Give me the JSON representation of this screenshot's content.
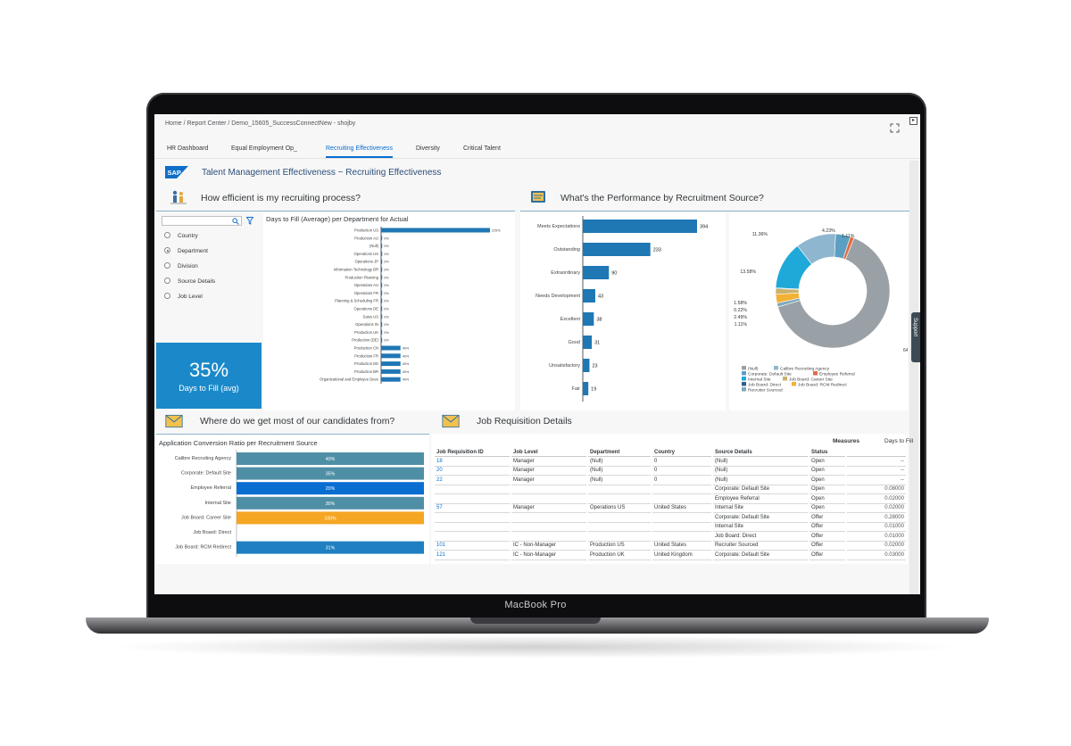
{
  "breadcrumb": "Home / Report Center / Demo_15605_SuccessConnectNew - shojby",
  "tabs": [
    {
      "label": "HR Dashboard"
    },
    {
      "label": "Equal Employment Op_"
    },
    {
      "label": "Recruiting Effectiveness",
      "active": true
    },
    {
      "label": "Diversity"
    },
    {
      "label": "Critical Talent"
    }
  ],
  "page_title": "Talent Management Effectiveness ~ Recruiting Effectiveness",
  "sections": {
    "efficiency": "How efficient is my recruiting process?",
    "performance": "What's the Performance by Recruitment Source?",
    "candidates": "Where do we get most of our candidates from?",
    "requisitions": "Job Requisition Details"
  },
  "filters": {
    "search_placeholder": "",
    "options": [
      {
        "label": "Country",
        "selected": false
      },
      {
        "label": "Department",
        "selected": true
      },
      {
        "label": "Division",
        "selected": false
      },
      {
        "label": "Source Details",
        "selected": false
      },
      {
        "label": "Job Level",
        "selected": false
      }
    ]
  },
  "kpi": {
    "value": "35%",
    "label": "Days to Fill (avg)"
  },
  "support_label": "Support",
  "colors": {
    "accent": "#0a6ed1",
    "bar_blue": "#1f77b4",
    "kpi_tile": "#1b89c9"
  },
  "chart_data": [
    {
      "type": "bar",
      "orientation": "horizontal",
      "title": "Days to Fill (Average) per Department for Actual",
      "categories": [
        "Production US",
        "Production AU",
        "(Null)",
        "Operations US",
        "Operations JP",
        "Information Technology BR",
        "Production Planning",
        "Operations AU",
        "Operations FR",
        "Planning & Scheduling FR",
        "Operations DE",
        "Sales US",
        "Operations IN",
        "Production UK",
        "Production (DE)",
        "Production CN",
        "Production FR",
        "Production DE",
        "Production BR",
        "Organizational and Employee Deve"
      ],
      "value_labels": [
        "225%",
        "0%",
        "0%",
        "0%",
        "0%",
        "0%",
        "0%",
        "0%",
        "0%",
        "0%",
        "0%",
        "0%",
        "0%",
        "0%",
        "0%",
        "40%",
        "40%",
        "40%",
        "40%",
        "40%"
      ],
      "values": [
        225,
        0,
        0,
        0,
        0,
        0,
        0,
        0,
        0,
        0,
        0,
        0,
        0,
        0,
        0,
        40,
        40,
        40,
        40,
        40
      ]
    },
    {
      "type": "bar",
      "orientation": "horizontal",
      "title": "",
      "categories": [
        "Meets Expectations",
        "Outstanding",
        "Extraordinary",
        "Needs Development",
        "Excellent",
        "Good",
        "Unsatisfactory",
        "Fair"
      ],
      "values": [
        394,
        233,
        90,
        43,
        38,
        31,
        23,
        19
      ]
    },
    {
      "type": "pie",
      "variant": "donut",
      "slices": [
        {
          "name": "(Null)",
          "value": 64.37,
          "label": "64.37%",
          "color": "#9aa1a6"
        },
        {
          "name": "Calibre Recruiting Agency",
          "value": 11.36,
          "label": "11.36%",
          "color": "#8fb6cf"
        },
        {
          "name": "Corporate: Default Site",
          "value": 4.23,
          "label": "4.23%",
          "color": "#5b9fc2"
        },
        {
          "name": "Employee Referral",
          "value": 1.11,
          "label": "1.11%",
          "color": "#e06c40"
        },
        {
          "name": "Internal Site",
          "value": 13.58,
          "label": "13.58%",
          "color": "#1fa9d9"
        },
        {
          "name": "Job Board: Career Site",
          "value": 1.58,
          "label": "1.58%",
          "color": "#c9b26a"
        },
        {
          "name": "Job Board: Direct",
          "value": 0.22,
          "label": "0.22%",
          "color": "#2f5f8a"
        },
        {
          "name": "Job Board: RCM Redirect",
          "value": 2.49,
          "label": "2.49%",
          "color": "#f2b134"
        },
        {
          "name": "Recruiter Sourced",
          "value": 1.11,
          "label": "1.11%",
          "color": "#7fa9b9"
        }
      ],
      "legend": "bottom"
    },
    {
      "type": "bar",
      "orientation": "horizontal",
      "title": "Application Conversion Ratio per Recruitment Source",
      "categories": [
        "Calibre Recruiting Agency",
        "Corporate: Default Site",
        "Employee Referral",
        "Internal Site",
        "Job Board: Career Site",
        "Job Board: Direct",
        "Job Board: RCM Redirect"
      ],
      "value_labels": [
        "40%",
        "35%",
        "20%",
        "30%",
        "100%",
        "",
        "31%"
      ],
      "values": [
        40,
        35,
        20,
        30,
        100,
        null,
        31
      ],
      "colors": [
        "#4f8fa6",
        "#4f8fa6",
        "#0a6ed1",
        "#4f8fa6",
        "#f5a623",
        "",
        "#1f7fc0"
      ]
    }
  ],
  "requisitions": {
    "measures_label": "Measures",
    "days_to_fill_label": "Days to Fill",
    "columns": [
      "Job Requisition ID",
      "Job Level",
      "Department",
      "Country",
      "Source Details",
      "Status"
    ],
    "rows": [
      [
        "18",
        "Manager",
        "(Null)",
        "0",
        "(Null)",
        "Open",
        "--"
      ],
      [
        "20",
        "Manager",
        "(Null)",
        "0",
        "(Null)",
        "Open",
        "--"
      ],
      [
        "22",
        "Manager",
        "(Null)",
        "0",
        "(Null)",
        "Open",
        "--"
      ],
      [
        "",
        "",
        "",
        "",
        "Corporate: Default Site",
        "Open",
        "0.08000"
      ],
      [
        "",
        "",
        "",
        "",
        "Employee Referral",
        "Open",
        "0.02000"
      ],
      [
        "57",
        "Manager",
        "Operations US",
        "United States",
        "Internal Site",
        "Open",
        "0.02000"
      ],
      [
        "",
        "",
        "",
        "",
        "Corporate: Default Site",
        "Offer",
        "0.28000"
      ],
      [
        "",
        "",
        "",
        "",
        "Internal Site",
        "Offer",
        "0.01000"
      ],
      [
        "",
        "",
        "",
        "",
        "Job Board: Direct",
        "Offer",
        "0.01000"
      ],
      [
        "101",
        "IC - Non-Manager",
        "Production US",
        "United States",
        "Recruiter Sourced",
        "Offer",
        "0.02000"
      ],
      [
        "121",
        "IC - Non-Manager",
        "Production UK",
        "United Kingdom",
        "Corporate: Default Site",
        "Offer",
        "0.03000"
      ]
    ]
  },
  "device_label": "MacBook Pro"
}
